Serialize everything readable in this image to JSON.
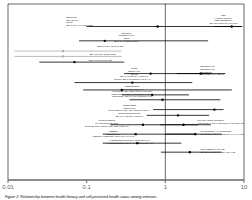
{
  "chart_data": {
    "type": "forest",
    "title": "Figure 2: Relationship between health literacy and self-perceived health status among veterans.",
    "log": "x",
    "xlim": [
      0.01,
      10
    ],
    "xticks": [
      0.01,
      0.1,
      1,
      10
    ],
    "ylim": [
      0,
      43
    ],
    "tick_labels": "x",
    "grid": false,
    "reference_x": 1,
    "intervals": [
      {
        "y": 37.5,
        "low": 0.1,
        "high": 9.2,
        "point": 0.8,
        "color": "#000000"
      },
      {
        "y": 34.0,
        "low": 0.08,
        "high": 3.5,
        "point": 0.17,
        "color": "#000000"
      },
      {
        "y": 31.5,
        "low": 0.012,
        "high": 0.28,
        "point": 0.05,
        "color": "#aaaaaa"
      },
      {
        "y": 30.2,
        "low": 0.012,
        "high": 0.28,
        "point": 0.05,
        "color": "#aaaaaa"
      },
      {
        "y": 28.8,
        "low": 0.025,
        "high": 0.3,
        "point": 0.07,
        "color": "#000000"
      },
      {
        "y": 26.0,
        "low": 0.3,
        "high": 3.8,
        "point": 0.65,
        "color": "#000000"
      },
      {
        "y": 23.8,
        "low": 0.07,
        "high": 2.2,
        "point": 0.38,
        "color": "#000000"
      },
      {
        "y": 22.0,
        "low": 0.09,
        "high": 7.0,
        "point": 0.28,
        "color": "#000000"
      },
      {
        "y": 20.8,
        "low": 0.28,
        "high": 2.0,
        "point": 0.68,
        "color": "#000000"
      },
      {
        "y": 19.6,
        "low": 0.35,
        "high": 5.0,
        "point": 0.92,
        "color": "#000000"
      },
      {
        "y": 17.2,
        "low": 0.7,
        "high": 5.5,
        "point": 4.2,
        "color": "#000000"
      },
      {
        "y": 15.8,
        "low": 0.58,
        "high": 3.6,
        "point": 1.45,
        "color": "#000000"
      },
      {
        "y": 13.5,
        "low": 0.2,
        "high": 2.6,
        "point": 0.52,
        "color": "#000000"
      },
      {
        "y": 11.2,
        "low": 0.16,
        "high": 2.5,
        "point": 0.42,
        "color": "#000000"
      },
      {
        "y": 9.0,
        "low": 0.16,
        "high": 1.6,
        "point": 0.44,
        "color": "#000000"
      },
      {
        "y": 6.8,
        "low": 0.88,
        "high": 5.2,
        "point": 2.05,
        "color": "#000000"
      },
      {
        "y": 37.5,
        "low": 4.2,
        "high": 9.5,
        "point": 7.0,
        "color": "#000000"
      },
      {
        "y": 26.0,
        "low": 1.4,
        "high": 5.8,
        "point": 2.8,
        "color": "#000000"
      },
      {
        "y": 13.5,
        "low": 0.85,
        "high": 3.8,
        "point": 1.7,
        "color": "#000000"
      },
      {
        "y": 11.2,
        "low": 1.0,
        "high": 5.2,
        "point": 2.4,
        "color": "#000000"
      }
    ],
    "annotations": [
      {
        "x": 0.055,
        "y": 40.0,
        "text": "Risk group\nOR (95% CI)\nOR 65\nOR (0.5,0.4,0.44,0.52,0.55)",
        "align": "left",
        "color": "#000000"
      },
      {
        "x": 0.32,
        "y": 36.2,
        "text": "Education\nUnmarried (Ref)\nMales\nOR:1 (0.44,0.55,0.71-3.6)",
        "align": "center",
        "color": "#000000"
      },
      {
        "x": 0.2,
        "y": 33.0,
        "text": "OR(0.5,0.3,0.42,0.54,0.38)",
        "align": "center",
        "color": "#000000"
      },
      {
        "x": 0.16,
        "y": 31.0,
        "text": "OR (0.5,0.3,0.42,0.54,0.55)",
        "align": "center",
        "color": "#000000"
      },
      {
        "x": 0.15,
        "y": 29.5,
        "text": "Race (0.3,0.6,0.62,1.22)",
        "align": "center",
        "color": "#000000"
      },
      {
        "x": 0.4,
        "y": 27.5,
        "text": "Illness\nMarried (ref)\nOR 62\nOR: 1.40 (95%CI: 0.42-3.47)",
        "align": "center",
        "color": "#000000"
      },
      {
        "x": 0.38,
        "y": 24.8,
        "text": "Income: OR: 0.42 (95%CI: 0.11,0.4; 2",
        "align": "center",
        "color": "#000000"
      },
      {
        "x": 0.38,
        "y": 23.2,
        "text": "INCOME RISK\nFemale/Male scale (ref)\nlow income: OR: 1.23 (95%CI: 0.11-6.21)\nmiddle income: OR: 0.70 (95%CI: 0.42-1.3)\nhigh income: OR: 0.94(0.40-2.21,5-14,70)",
        "align": "center",
        "color": "#000000"
      },
      {
        "x": 0.35,
        "y": 18.5,
        "text": "Marital status\nMarried (ref)\nNever married: OR: 4.30 (95%CI: 0.76-5.4)\nDivorced/widowed OR:\nOR: 1.49 (95%CI: 0.71-3.46)",
        "align": "center",
        "color": "#000000"
      },
      {
        "x": 0.18,
        "y": 14.8,
        "text": "Living conditions\nLive independently(Ref)\nNot living alone: OR45: 1.21, 0.52, 0.55-0.46",
        "align": "center",
        "color": "#000000"
      },
      {
        "x": 0.22,
        "y": 12.2,
        "text": "Disability\nDisabled(ref)\nDisabled Health Care: OR 0.43, 0.41, 2.40",
        "align": "center",
        "color": "#000000"
      },
      {
        "x": 0.35,
        "y": 10.0,
        "text": "Hospitalization frequency using Mod (ref)\n>4 hospitalizations: OR: 0.46 (95%CI:0.20(0.4 R",
        "align": "center",
        "color": "#000000"
      },
      {
        "x": 5.5,
        "y": 40.5,
        "text": "Male\nFemale (Control)\nFEMALE BINARY\nOR: 3.48 (95% CI: 8.79,93.6)",
        "align": "center",
        "color": "#000000"
      },
      {
        "x": 2.8,
        "y": 28.0,
        "text": "Education (ref)\nEducation (ref)\nEducation's\nOR: (1.3-0.47) 4 45p ref",
        "align": "left",
        "color": "#000000"
      },
      {
        "x": 2.8,
        "y": 14.8,
        "text": "Per Type (Phone access(0)\nVeteran care): OR: 0.42(95%CI: 0.43-0.65,0.12)",
        "align": "left",
        "color": "#000000"
      },
      {
        "x": 2.8,
        "y": 12.2,
        "text": "Poly/Pharmacy. VA technologist\nOR Needed: OR: 0.43(95%CI: 0.46,0.44-2.12)",
        "align": "left",
        "color": "#000000"
      },
      {
        "x": 2.8,
        "y": 7.8,
        "text": "POLY/MEDICAL FRAUD\nOR: 209 (0.42,0.98-4.59) 0.26, 0.58",
        "align": "left",
        "color": "#000000"
      }
    ]
  }
}
